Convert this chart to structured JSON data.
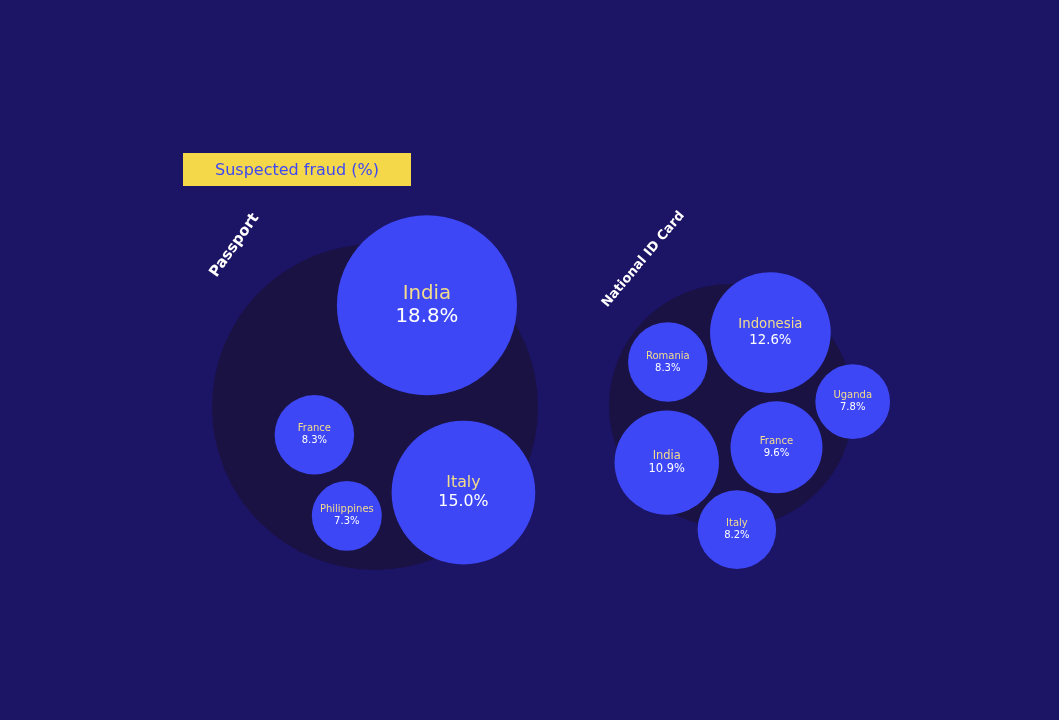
{
  "chart_data": [
    {
      "type": "other",
      "title": "Passport",
      "annotations": [
        "Suspected fraud (%)"
      ],
      "categories": [
        "India",
        "France",
        "Philippines",
        "Italy"
      ],
      "values": [
        18.8,
        8.3,
        7.3,
        15.0
      ],
      "value_labels": [
        "18.8%",
        "8.3%",
        "7.3%",
        "15.0%"
      ],
      "color": "#3d47f5"
    },
    {
      "type": "other",
      "title": "National ID Card",
      "categories": [
        "Indonesia",
        "Romania",
        "Uganda",
        "India",
        "France",
        "Italy"
      ],
      "values": [
        12.6,
        8.3,
        7.8,
        10.9,
        9.6,
        8.2
      ],
      "value_labels": [
        "12.6%",
        "8.3%",
        "7.8%",
        "10.9%",
        "9.6%",
        "8.2%"
      ],
      "color": "#3d47f5"
    }
  ]
}
